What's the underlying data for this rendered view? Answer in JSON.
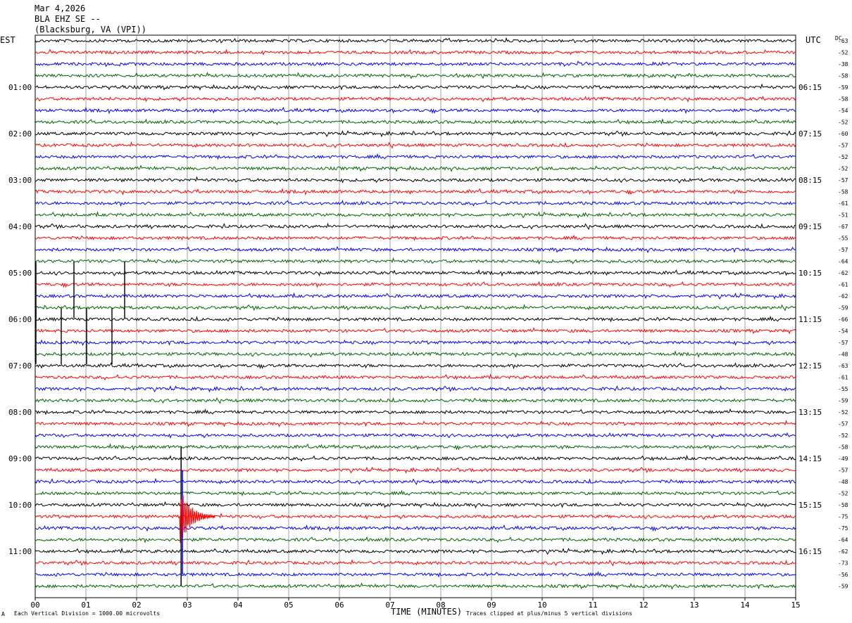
{
  "header": {
    "date": "Mar 4,2026",
    "station": "BLA EHZ SE --",
    "location": "(Blacksburg, VA (VPI))"
  },
  "left_axis_title": "EST",
  "right_axis_title": "UTC",
  "dc_title": "DC",
  "chart_data": {
    "type": "line",
    "subtype": "helicorder",
    "xlabel": "TIME (MINUTES)",
    "x_ticks": [
      "00",
      "01",
      "02",
      "03",
      "04",
      "05",
      "06",
      "07",
      "08",
      "09",
      "10",
      "11",
      "12",
      "13",
      "14",
      "15"
    ],
    "xlim": [
      0,
      15
    ],
    "minutes_per_line": 15,
    "line_colors": [
      "#000000",
      "#ff0000",
      "#0000ff",
      "#006400"
    ],
    "left_time_labels": [
      "01:00",
      "02:00",
      "03:00",
      "04:00",
      "05:00",
      "06:00",
      "07:00",
      "08:00",
      "09:00",
      "10:00",
      "11:00"
    ],
    "right_time_labels": [
      "06:15",
      "07:15",
      "08:15",
      "09:15",
      "10:15",
      "11:15",
      "12:15",
      "13:15",
      "14:15",
      "15:15",
      "16:15"
    ],
    "dc_offsets": [
      -63,
      -52,
      -38,
      -58,
      -59,
      -58,
      -54,
      -52,
      -60,
      -57,
      -52,
      -52,
      -57,
      -58,
      -61,
      -51,
      -67,
      -55,
      -57,
      -64,
      -62,
      -61,
      -62,
      -59,
      -66,
      -54,
      -57,
      -48,
      -63,
      -61,
      -55,
      -59,
      -52,
      -57,
      -52,
      -58,
      -49,
      -57,
      -48,
      -52,
      -58,
      -75,
      -75,
      -64,
      -62,
      -73,
      -56,
      -59
    ],
    "events": [
      {
        "trace": 41,
        "minute": 2.85,
        "type": "earthquake",
        "peak_divisions": 5,
        "coda_minutes": 0.7
      },
      {
        "trace": 20,
        "minute": 0.0,
        "type": "spike"
      },
      {
        "trace": 20,
        "minute": 0.75,
        "type": "spike"
      },
      {
        "trace": 20,
        "minute": 1.75,
        "type": "spike"
      },
      {
        "trace": 24,
        "minute": 0.0,
        "type": "spike"
      },
      {
        "trace": 24,
        "minute": 0.5,
        "type": "spike"
      },
      {
        "trace": 24,
        "minute": 1.0,
        "type": "spike"
      },
      {
        "trace": 24,
        "minute": 1.5,
        "type": "spike"
      }
    ]
  },
  "footer": {
    "scale": "Each Vertical Division = 1000.00 microvolts",
    "clip": "Traces clipped at plus/minus 5 vertical divisions",
    "mark": "A"
  }
}
